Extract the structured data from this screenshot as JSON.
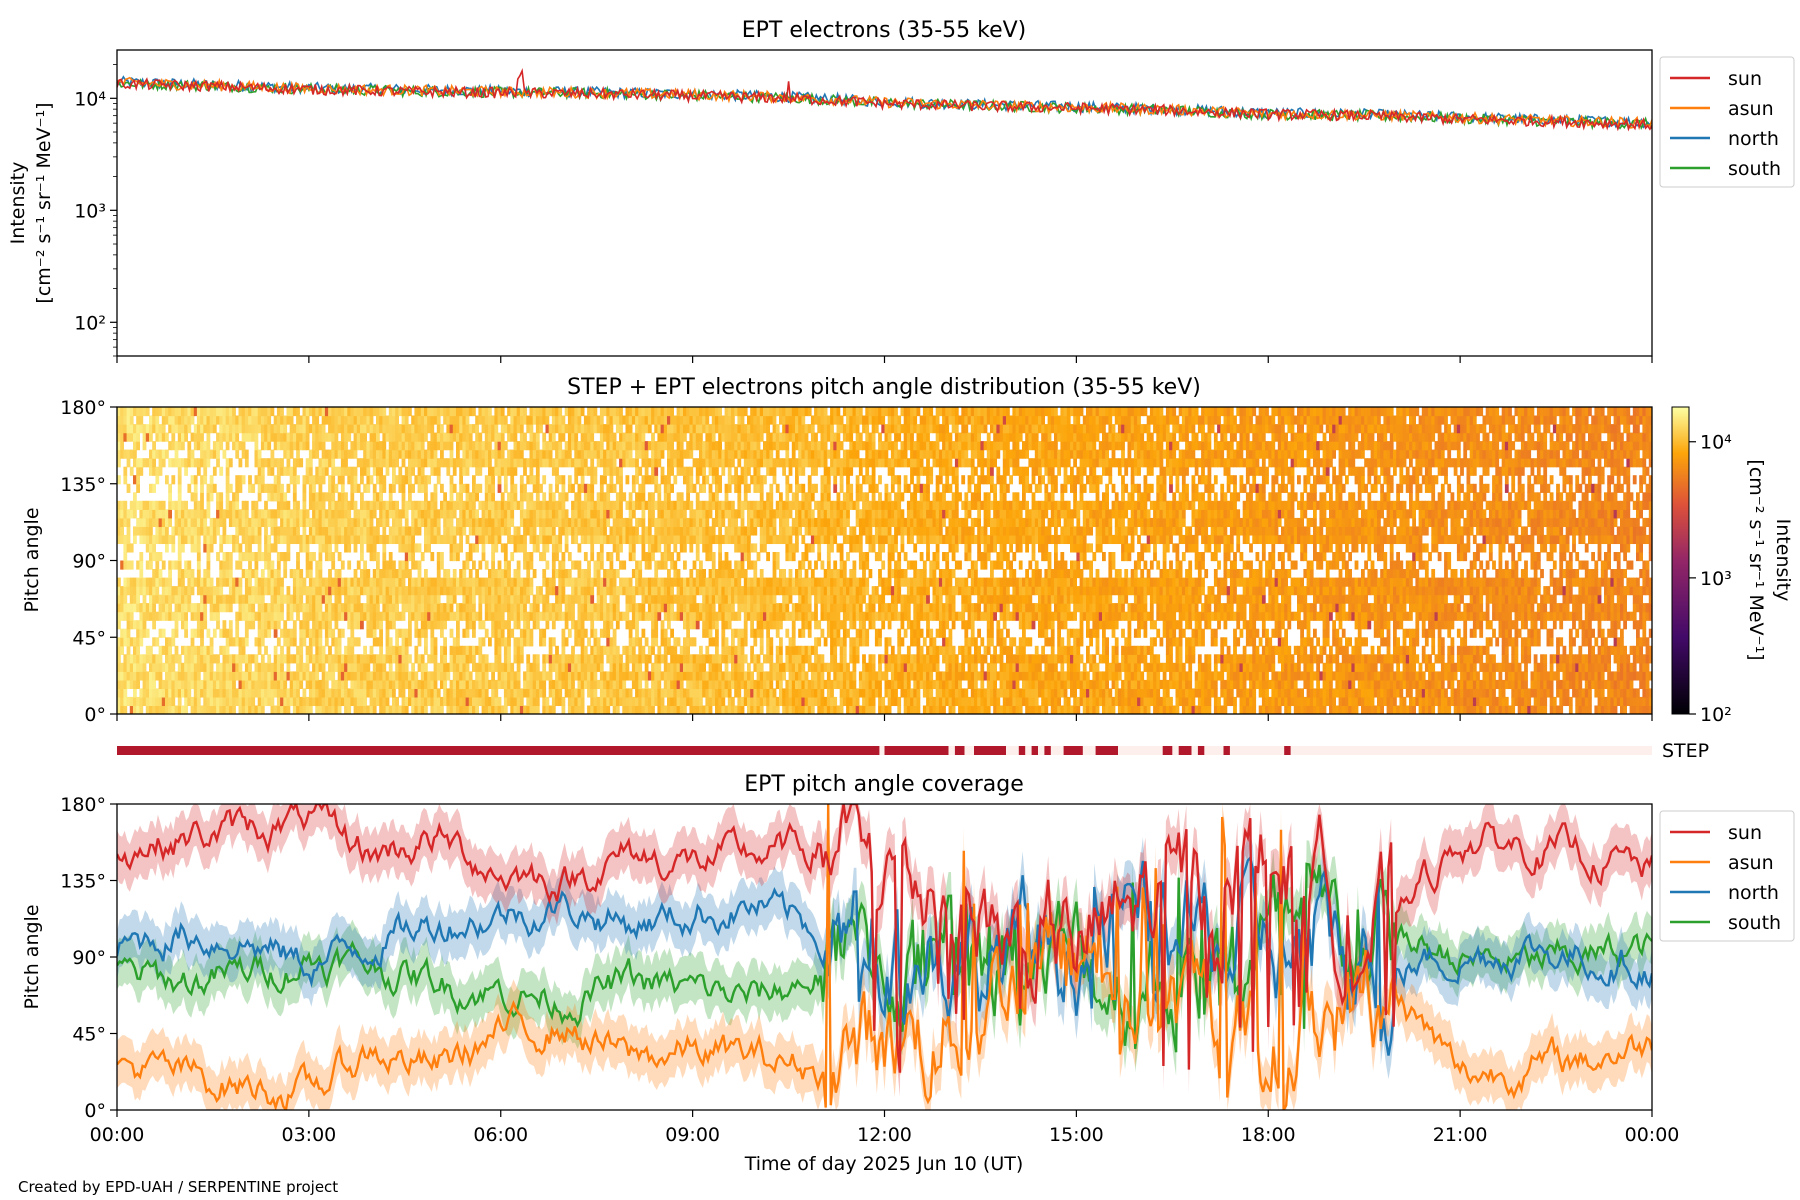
{
  "footer": "Created by EPD-UAH / SERPENTINE project",
  "series_colors": {
    "sun": "#d62728",
    "asun": "#ff7f0e",
    "north": "#1f77b4",
    "south": "#2ca02c"
  },
  "chart_data": [
    {
      "type": "line",
      "title": "EPT electrons (35-55 keV)",
      "ylabel_line1": "Intensity",
      "ylabel_line2": "[cm⁻² s⁻¹ sr⁻¹ MeV⁻¹]",
      "yscale": "log",
      "ylim": [
        50,
        27000
      ],
      "yticks": [
        "10²",
        "10³",
        "10⁴"
      ],
      "x_hours": [
        0,
        1.5,
        3,
        4.5,
        6,
        7.5,
        9,
        10.5,
        12,
        13.5,
        15,
        16.5,
        18,
        19.5,
        21,
        22.5,
        24
      ],
      "legend": [
        "sun",
        "asun",
        "north",
        "south"
      ],
      "legend_position": "outside right",
      "series": [
        {
          "name": "sun",
          "values": [
            13500,
            12800,
            12000,
            11500,
            11200,
            11000,
            10500,
            10000,
            9000,
            8500,
            8200,
            7800,
            7200,
            7000,
            6500,
            6200,
            5800
          ]
        },
        {
          "name": "asun",
          "values": [
            13800,
            13000,
            12200,
            11800,
            11400,
            11200,
            10800,
            10200,
            9200,
            8700,
            8300,
            7900,
            7300,
            7100,
            6700,
            6300,
            6000
          ]
        },
        {
          "name": "north",
          "values": [
            14000,
            13200,
            12400,
            12000,
            11600,
            11300,
            10900,
            10300,
            9300,
            8800,
            8400,
            8000,
            7400,
            7200,
            6800,
            6400,
            6100
          ]
        },
        {
          "name": "south",
          "values": [
            13600,
            12900,
            12100,
            11600,
            11300,
            11100,
            10600,
            10100,
            9100,
            8600,
            8200,
            7800,
            7200,
            7000,
            6600,
            6200,
            5900
          ]
        }
      ]
    },
    {
      "type": "heatmap",
      "title": "STEP + EPT electrons pitch angle distribution (35-55 keV)",
      "ylabel": "Pitch angle",
      "ylim": [
        0,
        180
      ],
      "yticks": [
        "0°",
        "45°",
        "90°",
        "135°",
        "180°"
      ],
      "colorbar_label": "Intensity",
      "colorbar_units": "[cm⁻² s⁻¹ sr⁻¹ MeV⁻¹]",
      "colorbar_scale": "log",
      "colorbar_range": [
        100,
        18000
      ],
      "colorbar_ticks": [
        "10²",
        "10³",
        "10⁴"
      ],
      "intensity_by_hour": [
        13500,
        12800,
        12000,
        11500,
        11200,
        11000,
        10500,
        10000,
        9000,
        8500,
        8200,
        7800,
        7200,
        7000,
        6500,
        6200,
        5800
      ]
    },
    {
      "type": "bar",
      "label": "STEP",
      "active_intervals_hours": [
        [
          0,
          11.92
        ],
        [
          12.0,
          13.0
        ],
        [
          13.1,
          13.25
        ],
        [
          13.4,
          13.9
        ],
        [
          14.1,
          14.2
        ],
        [
          14.3,
          14.4
        ],
        [
          14.5,
          14.6
        ],
        [
          14.8,
          15.1
        ],
        [
          15.3,
          15.65
        ],
        [
          16.35,
          16.5
        ],
        [
          16.6,
          16.8
        ],
        [
          16.9,
          17.0
        ],
        [
          17.3,
          17.4
        ],
        [
          18.25,
          18.35
        ]
      ]
    },
    {
      "type": "line",
      "title": "EPT pitch angle coverage",
      "ylabel": "Pitch angle",
      "ylim": [
        0,
        180
      ],
      "yticks": [
        "0°",
        "45°",
        "90°",
        "135°",
        "180°"
      ],
      "xlabel": "Time of day 2025 Jun 10 (UT)",
      "xticks": [
        "00:00",
        "03:00",
        "06:00",
        "09:00",
        "12:00",
        "15:00",
        "18:00",
        "21:00",
        "00:00"
      ],
      "legend": [
        "sun",
        "asun",
        "north",
        "south"
      ],
      "legend_position": "outside right",
      "x_hours": [
        0,
        1,
        2,
        3,
        4,
        5,
        6,
        7,
        8,
        9,
        10,
        11,
        12,
        13,
        14,
        15,
        16,
        17,
        18,
        19,
        20,
        21,
        22,
        23,
        24
      ],
      "series": [
        {
          "name": "sun",
          "values": [
            155,
            160,
            165,
            170,
            150,
            160,
            140,
            135,
            150,
            145,
            150,
            155,
            140,
            130,
            100,
            90,
            120,
            130,
            150,
            120,
            110,
            160,
            155,
            150,
            140
          ]
        },
        {
          "name": "asun",
          "values": [
            25,
            20,
            15,
            10,
            35,
            25,
            45,
            50,
            30,
            35,
            30,
            25,
            40,
            50,
            80,
            90,
            60,
            50,
            30,
            60,
            70,
            20,
            25,
            30,
            40
          ]
        },
        {
          "name": "north",
          "values": [
            95,
            105,
            100,
            85,
            100,
            110,
            115,
            120,
            110,
            115,
            120,
            105,
            100,
            95,
            90,
            100,
            110,
            100,
            95,
            90,
            85,
            90,
            95,
            90,
            85
          ]
        },
        {
          "name": "south",
          "values": [
            80,
            75,
            80,
            90,
            85,
            75,
            70,
            65,
            75,
            70,
            65,
            80,
            85,
            90,
            95,
            85,
            75,
            80,
            90,
            95,
            100,
            90,
            85,
            90,
            95
          ]
        }
      ]
    }
  ]
}
